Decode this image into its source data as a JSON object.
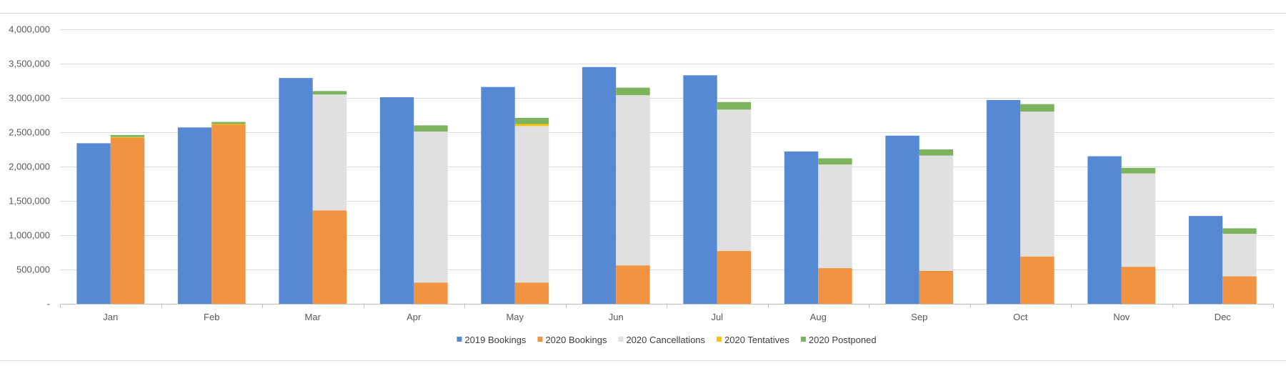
{
  "chart_data": {
    "type": "bar",
    "categories": [
      "Jan",
      "Feb",
      "Mar",
      "Apr",
      "May",
      "Jun",
      "Jul",
      "Aug",
      "Sep",
      "Oct",
      "Nov",
      "Dec"
    ],
    "ylim": [
      0,
      4000000
    ],
    "yticks": [
      0,
      500000,
      1000000,
      1500000,
      2000000,
      2500000,
      3000000,
      3500000,
      4000000
    ],
    "ytick_labels": [
      "-",
      "500,000",
      "1,000,000",
      "1,500,000",
      "2,000,000",
      "2,500,000",
      "3,000,000",
      "3,500,000",
      "4,000,000"
    ],
    "grid": true,
    "legend_position": "bottom",
    "series_2019": {
      "name": "2019 Bookings",
      "color": "#5589d3",
      "values": [
        2340000,
        2570000,
        3290000,
        3010000,
        3160000,
        3450000,
        3330000,
        2220000,
        2450000,
        2970000,
        2150000,
        1280000
      ]
    },
    "stacked_2020": [
      {
        "name": "2020 Bookings",
        "color": "#f29341",
        "values": [
          2420000,
          2610000,
          1360000,
          310000,
          310000,
          560000,
          770000,
          520000,
          480000,
          690000,
          540000,
          400000
        ]
      },
      {
        "name": "2020 Cancellations",
        "color": "#e0e0e0",
        "values": [
          0,
          0,
          1690000,
          2200000,
          2280000,
          2480000,
          2060000,
          1510000,
          1680000,
          2110000,
          1360000,
          620000
        ]
      },
      {
        "name": "2020 Tentatives",
        "color": "#ffc000",
        "values": [
          10000,
          10000,
          0,
          0,
          30000,
          0,
          0,
          0,
          0,
          0,
          0,
          0
        ]
      },
      {
        "name": "2020 Postponed",
        "color": "#7cb35c",
        "values": [
          30000,
          30000,
          50000,
          90000,
          90000,
          110000,
          110000,
          90000,
          90000,
          110000,
          80000,
          80000
        ]
      }
    ]
  }
}
